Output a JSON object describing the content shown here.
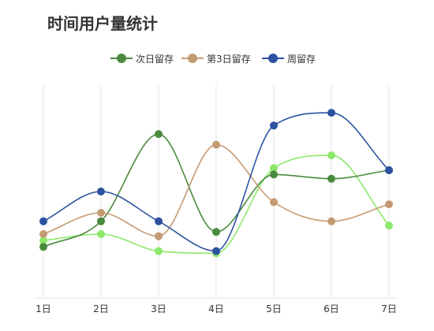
{
  "chart_data": {
    "type": "line",
    "title": "时间用户量统计",
    "xlabel": "",
    "ylabel": "",
    "categories": [
      "1日",
      "2日",
      "3日",
      "4日",
      "5日",
      "6日",
      "7日"
    ],
    "ylim": [
      0,
      100
    ],
    "smooth": true,
    "grid": "vertical",
    "legend_position": "top-center",
    "series": [
      {
        "name": "次日留存",
        "color": "#4a8a3c",
        "values": [
          24,
          36,
          77,
          31,
          58,
          56,
          60
        ]
      },
      {
        "name": "第3日留存",
        "color": "#c49a72",
        "values": [
          30,
          40,
          29,
          72,
          45,
          36,
          44
        ]
      },
      {
        "name": "周留存",
        "color": "#2d52a0",
        "values": [
          36,
          50,
          36,
          22,
          81,
          87,
          60
        ]
      },
      {
        "name": "",
        "color": "#8ce86a",
        "values": [
          27,
          30,
          22,
          21,
          61,
          67,
          34
        ]
      }
    ]
  }
}
